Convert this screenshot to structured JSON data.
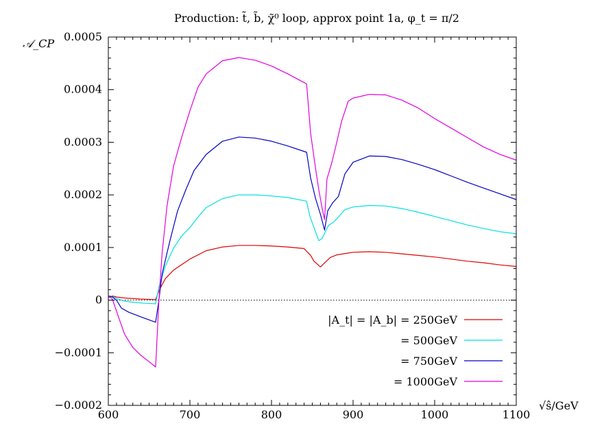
{
  "chart_data": {
    "type": "line",
    "title": "Production: t̃, b̃, χ̃⁰ loop, approx point 1a, φ_t = π/2",
    "ylabel": "𝒜_CP",
    "xlabel": "√ŝ/GeV",
    "xlim": [
      600,
      1100
    ],
    "ylim": [
      -0.0002,
      0.0005
    ],
    "x_ticks": [
      600,
      700,
      800,
      900,
      1000,
      1100
    ],
    "y_ticks": [
      -0.0002,
      -0.0001,
      0,
      0.0001,
      0.0002,
      0.0003,
      0.0004,
      0.0005
    ],
    "x_tick_labels": [
      "600",
      "700",
      "800",
      "900",
      "1000",
      "1100"
    ],
    "y_tick_labels": [
      "−0.0002",
      "−0.0001",
      "0",
      "0.0001",
      "0.0002",
      "0.0003",
      "0.0004",
      "0.0005"
    ],
    "zero_line": "dotted",
    "legend_position": "bottom-right",
    "series": [
      {
        "name": "|A_t| = |A_b| = 250GeV",
        "color": "#e00000",
        "points": [
          [
            600,
            5e-06
          ],
          [
            605,
            8e-06
          ],
          [
            610,
            6e-06
          ],
          [
            620,
            4e-06
          ],
          [
            640,
            2e-06
          ],
          [
            658,
            1e-06
          ],
          [
            662,
            1.8e-05
          ],
          [
            670,
            4.1e-05
          ],
          [
            680,
            5.7e-05
          ],
          [
            700,
            7.8e-05
          ],
          [
            720,
            9.4e-05
          ],
          [
            740,
            0.000101
          ],
          [
            760,
            0.000104
          ],
          [
            780,
            0.000104
          ],
          [
            800,
            0.000103
          ],
          [
            820,
            0.000101
          ],
          [
            840,
            9.8e-05
          ],
          [
            848,
            8.5e-05
          ],
          [
            852,
            7.4e-05
          ],
          [
            860,
            6.3e-05
          ],
          [
            866,
            7.2e-05
          ],
          [
            872,
            8.1e-05
          ],
          [
            880,
            8.6e-05
          ],
          [
            900,
            9.1e-05
          ],
          [
            920,
            9.2e-05
          ],
          [
            940,
            9.1e-05
          ],
          [
            960,
            8.8e-05
          ],
          [
            980,
            8.5e-05
          ],
          [
            1000,
            8.2e-05
          ],
          [
            1020,
            7.8e-05
          ],
          [
            1040,
            7.4e-05
          ],
          [
            1060,
            7.1e-05
          ],
          [
            1080,
            6.7e-05
          ],
          [
            1100,
            6.4e-05
          ]
        ]
      },
      {
        "name": "= 500GeV",
        "color": "#00e0e0",
        "points": [
          [
            600,
            8e-06
          ],
          [
            605,
            7e-06
          ],
          [
            612,
            2e-06
          ],
          [
            620,
            -2e-06
          ],
          [
            630,
            -4e-06
          ],
          [
            645,
            -6e-06
          ],
          [
            658,
            -7e-06
          ],
          [
            662,
            2.5e-05
          ],
          [
            670,
            6.5e-05
          ],
          [
            680,
            9.9e-05
          ],
          [
            690,
            0.000122
          ],
          [
            700,
            0.000138
          ],
          [
            710,
            0.000158
          ],
          [
            720,
            0.000176
          ],
          [
            740,
            0.000193
          ],
          [
            760,
            0.0002
          ],
          [
            780,
            0.0002
          ],
          [
            800,
            0.000198
          ],
          [
            820,
            0.000195
          ],
          [
            843,
            0.000188
          ],
          [
            847,
            0.00016
          ],
          [
            852,
            0.000138
          ],
          [
            858,
            0.000113
          ],
          [
            862,
            0.000117
          ],
          [
            866,
            0.00013
          ],
          [
            870,
            0.000142
          ],
          [
            876,
            0.000148
          ],
          [
            882,
            0.000158
          ],
          [
            890,
            0.000172
          ],
          [
            900,
            0.000177
          ],
          [
            920,
            0.00018
          ],
          [
            940,
            0.000179
          ],
          [
            960,
            0.000174
          ],
          [
            980,
            0.000167
          ],
          [
            1000,
            0.000159
          ],
          [
            1020,
            0.000151
          ],
          [
            1040,
            0.000143
          ],
          [
            1060,
            0.000136
          ],
          [
            1080,
            0.00013
          ],
          [
            1100,
            0.000126
          ]
        ]
      },
      {
        "name": "= 750GeV",
        "color": "#0000c0",
        "points": [
          [
            600,
            8e-06
          ],
          [
            605,
            6e-06
          ],
          [
            610,
            0.0
          ],
          [
            616,
            -1.5e-05
          ],
          [
            625,
            -2.3e-05
          ],
          [
            640,
            -3.2e-05
          ],
          [
            658,
            -4.2e-05
          ],
          [
            662,
            0.0
          ],
          [
            666,
            5e-05
          ],
          [
            675,
            0.00011
          ],
          [
            685,
            0.00017
          ],
          [
            695,
            0.00021
          ],
          [
            705,
            0.000246
          ],
          [
            720,
            0.000277
          ],
          [
            740,
            0.000302
          ],
          [
            760,
            0.00031
          ],
          [
            780,
            0.000308
          ],
          [
            800,
            0.000302
          ],
          [
            820,
            0.000293
          ],
          [
            843,
            0.000281
          ],
          [
            848,
            0.000232
          ],
          [
            854,
            0.000193
          ],
          [
            860,
            0.000163
          ],
          [
            865,
            0.000133
          ],
          [
            869,
            0.00017
          ],
          [
            875,
            0.000185
          ],
          [
            882,
            0.000197
          ],
          [
            890,
            0.00024
          ],
          [
            900,
            0.000262
          ],
          [
            920,
            0.000274
          ],
          [
            940,
            0.000273
          ],
          [
            960,
            0.000267
          ],
          [
            980,
            0.000258
          ],
          [
            1000,
            0.000248
          ],
          [
            1020,
            0.000236
          ],
          [
            1040,
            0.000224
          ],
          [
            1060,
            0.000213
          ],
          [
            1080,
            0.000202
          ],
          [
            1100,
            0.000191
          ]
        ]
      },
      {
        "name": "= 1000GeV",
        "color": "#e000e0",
        "points": [
          [
            600,
            8e-06
          ],
          [
            605,
            2e-06
          ],
          [
            612,
            -3e-05
          ],
          [
            620,
            -6.5e-05
          ],
          [
            630,
            -9e-05
          ],
          [
            640,
            -0.000105
          ],
          [
            650,
            -0.000117
          ],
          [
            658,
            -0.000127
          ],
          [
            662,
            0.0
          ],
          [
            666,
            9e-05
          ],
          [
            672,
            0.00018
          ],
          [
            680,
            0.000255
          ],
          [
            690,
            0.00031
          ],
          [
            700,
            0.00036
          ],
          [
            710,
            0.000405
          ],
          [
            720,
            0.00043
          ],
          [
            740,
            0.000455
          ],
          [
            760,
            0.000461
          ],
          [
            780,
            0.000456
          ],
          [
            800,
            0.000445
          ],
          [
            820,
            0.00043
          ],
          [
            843,
            0.000411
          ],
          [
            848,
            0.000317
          ],
          [
            854,
            0.00025
          ],
          [
            858,
            0.00021
          ],
          [
            862,
            0.000175
          ],
          [
            865,
            0.000153
          ],
          [
            868,
            0.00023
          ],
          [
            874,
            0.000262
          ],
          [
            880,
            0.0003
          ],
          [
            886,
            0.00034
          ],
          [
            894,
            0.000378
          ],
          [
            900,
            0.000384
          ],
          [
            920,
            0.000391
          ],
          [
            940,
            0.00039
          ],
          [
            960,
            0.00038
          ],
          [
            980,
            0.000365
          ],
          [
            1000,
            0.000345
          ],
          [
            1020,
            0.000327
          ],
          [
            1040,
            0.000309
          ],
          [
            1060,
            0.000291
          ],
          [
            1080,
            0.000277
          ],
          [
            1100,
            0.000266
          ]
        ]
      }
    ]
  }
}
